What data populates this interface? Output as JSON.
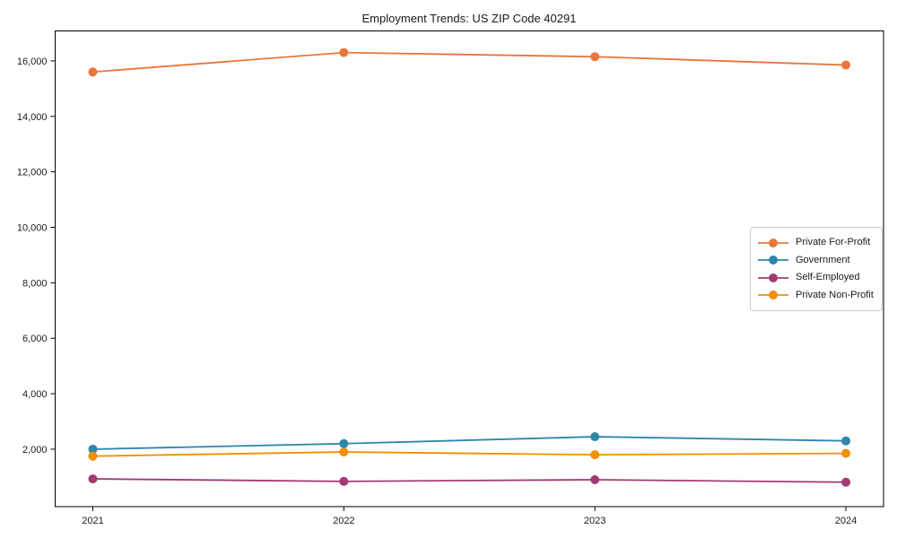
{
  "figure": {
    "background": "#ffffff",
    "axis_color": "#000000",
    "text_color": "#1a1a1a"
  },
  "chart_data": {
    "type": "line",
    "title": "Employment Trends: US ZIP Code 40291",
    "xlabel": "",
    "ylabel": "",
    "categories": [
      2021,
      2022,
      2023,
      2024
    ],
    "xtick_labels": [
      "2021",
      "2022",
      "2023",
      "2024"
    ],
    "yticks": [
      2000,
      4000,
      6000,
      8000,
      10000,
      12000,
      14000,
      16000
    ],
    "ytick_labels": [
      "2,000",
      "4,000",
      "6,000",
      "8,000",
      "10,000",
      "12,000",
      "14,000",
      "16,000"
    ],
    "xlim": [
      2020.85,
      2024.15
    ],
    "ylim": [
      -70,
      17080
    ],
    "grid": false,
    "legend_position": "center-right",
    "marker": "circle",
    "series": [
      {
        "name": "Private For-Profit",
        "color": "#E8763C",
        "values": [
          15600,
          16300,
          16150,
          15850
        ]
      },
      {
        "name": "Government",
        "color": "#2E86AB",
        "values": [
          2000,
          2200,
          2450,
          2300
        ]
      },
      {
        "name": "Self-Employed",
        "color": "#A23B72",
        "values": [
          930,
          840,
          900,
          810
        ]
      },
      {
        "name": "Private Non-Profit",
        "color": "#F18F01",
        "values": [
          1750,
          1900,
          1800,
          1850
        ]
      }
    ]
  }
}
